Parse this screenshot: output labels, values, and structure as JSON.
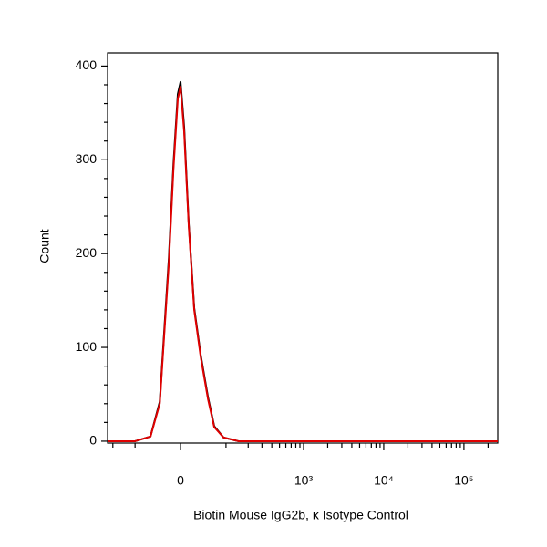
{
  "chart_data": {
    "type": "line",
    "xlabel": "Biotin Mouse IgG2b, κ Isotype Control",
    "ylabel": "Count",
    "x": [
      -234,
      -100,
      -57,
      -37,
      -20,
      -12,
      -4.6,
      0,
      6.1,
      13.9,
      23.6,
      35.8,
      51,
      65.9,
      92,
      149,
      500,
      264000
    ],
    "series": [
      {
        "color": "#000000",
        "values": [
          0,
          0,
          5,
          42,
          195,
          295,
          370,
          383,
          335,
          232,
          142,
          92,
          47,
          16,
          4,
          0,
          0,
          0
        ]
      },
      {
        "color": "#e00000",
        "values": [
          0,
          0,
          5,
          40,
          190,
          290,
          365,
          378,
          330,
          230,
          140,
          90,
          45,
          15,
          4,
          0,
          0,
          0
        ]
      }
    ],
    "xlim": [
      -234,
      264000
    ],
    "xscale": "biexponential",
    "xticks": [
      {
        "value": 0,
        "label": "0"
      },
      {
        "value": 1000,
        "label": "10³"
      },
      {
        "value": 10000,
        "label": "10⁴"
      },
      {
        "value": 100000,
        "label": "10⁵"
      }
    ],
    "xminorticks": [
      -200,
      -100,
      100,
      200,
      300,
      400,
      500,
      600,
      700,
      800,
      900,
      2000,
      3000,
      4000,
      5000,
      6000,
      7000,
      8000,
      9000,
      20000,
      30000,
      40000,
      50000,
      60000,
      70000,
      80000,
      90000,
      200000
    ],
    "ylim": [
      -2,
      414
    ],
    "yticks": [
      0,
      100,
      200,
      300,
      400
    ],
    "yminorticks": [
      20,
      40,
      60,
      80,
      120,
      140,
      160,
      180,
      220,
      240,
      260,
      280,
      320,
      340,
      360,
      380
    ]
  }
}
